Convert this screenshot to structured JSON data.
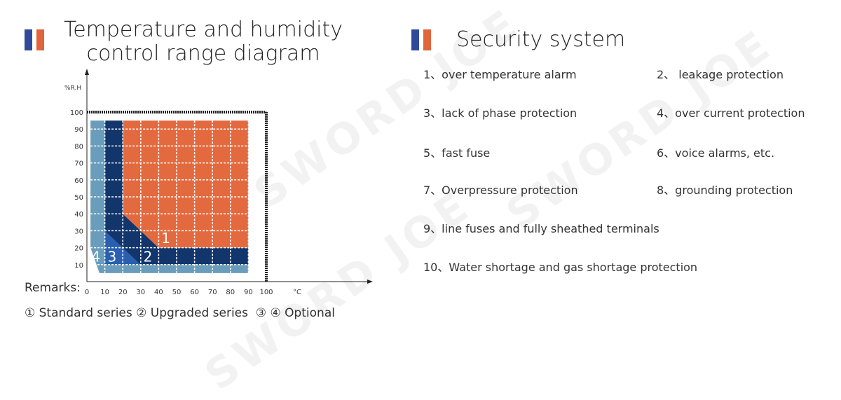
{
  "left": {
    "title_line1": "Temperature and humidity",
    "title_line2": "control range diagram"
  },
  "right": {
    "title": "Security system",
    "items": [
      "1、over temperature alarm",
      "2、 leakage protection",
      "3、lack of phase protection",
      "4、over current protection",
      "5、fast fuse",
      "6、voice alarms, etc.",
      "7、Overpressure protection",
      "8、grounding protection",
      "9、line fuses and fully sheathed terminals",
      "10、Water shortage and gas shortage protection"
    ]
  },
  "remarks": {
    "label": "Remarks:",
    "legend": "① Standard series ② Upgraded series  ③ ④ Optional"
  },
  "colors": {
    "flag_blue": "#2f4a9a",
    "flag_orange": "#e0643c",
    "orange": "#e36a3f",
    "navy": "#12366b",
    "bright_blue": "#2a5fb0",
    "light_blue": "#6a9dbb"
  },
  "watermark": "SWORD JOE",
  "chart_data": {
    "type": "area",
    "xlabel": "°C",
    "ylabel": "%R.H",
    "xlim": [
      0,
      100
    ],
    "ylim": [
      0,
      100
    ],
    "x_ticks": [
      "0",
      "10",
      "20",
      "30",
      "40",
      "50",
      "60",
      "70",
      "80",
      "90",
      "100"
    ],
    "y_ticks": [
      "10",
      "20",
      "30",
      "40",
      "50",
      "60",
      "70",
      "80",
      "90",
      "100"
    ],
    "grid": true,
    "regions": [
      {
        "label": "4",
        "color": "#6a9dbb",
        "polygon": [
          [
            2,
            95
          ],
          [
            10,
            95
          ],
          [
            10,
            10
          ],
          [
            90,
            10
          ],
          [
            90,
            5
          ],
          [
            7,
            5
          ],
          [
            2,
            20
          ]
        ],
        "label_at": [
          5,
          15
        ]
      },
      {
        "label": "",
        "color": "#12366b",
        "polygon": [
          [
            10,
            95
          ],
          [
            20,
            95
          ],
          [
            20,
            40
          ],
          [
            40,
            20
          ],
          [
            90,
            20
          ],
          [
            90,
            10
          ],
          [
            10,
            10
          ]
        ]
      },
      {
        "label": "3",
        "color": "#2a5fb0",
        "polygon": [
          [
            10,
            30
          ],
          [
            30,
            10
          ],
          [
            10,
            10
          ]
        ],
        "label_at": [
          14,
          15
        ]
      },
      {
        "label": "2",
        "color": "#12366b",
        "polygon": [],
        "label_at": [
          34,
          15
        ]
      },
      {
        "label": "1",
        "color": "#e36a3f",
        "polygon": [
          [
            20,
            95
          ],
          [
            90,
            95
          ],
          [
            90,
            20
          ],
          [
            40,
            20
          ],
          [
            20,
            40
          ]
        ],
        "label_at": [
          44,
          26
        ]
      }
    ]
  }
}
